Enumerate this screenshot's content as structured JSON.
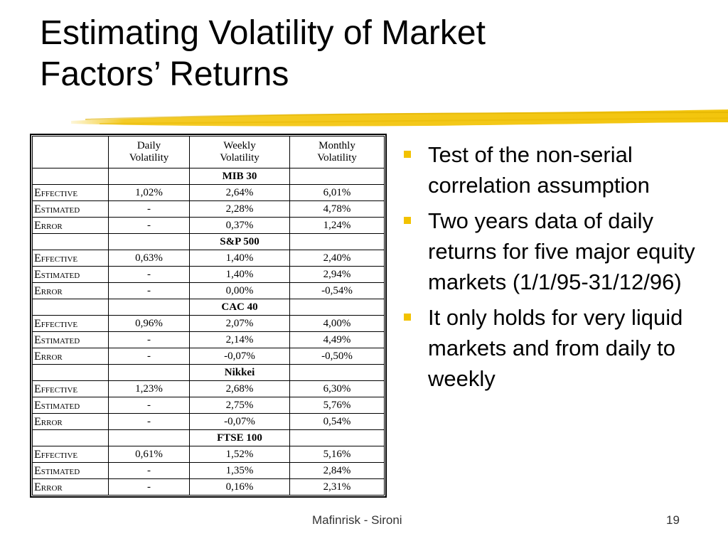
{
  "slide": {
    "title_line1": "Estimating Volatility of Market",
    "title_line2": "Factors’ Returns",
    "accent_color": "#f2c200",
    "footer": "Mafinrisk - Sironi",
    "page_number": "19"
  },
  "table": {
    "headers": [
      "",
      "Daily\nVolatility",
      "Weekly\nVolatility",
      "Monthly\nVolatility"
    ],
    "markets": [
      {
        "name": "MIB 30",
        "rows": [
          {
            "label": "Effective",
            "daily": "1,02%",
            "weekly": "2,64%",
            "monthly": "6,01%"
          },
          {
            "label": "Estimated",
            "daily": "-",
            "weekly": "2,28%",
            "monthly": "4,78%"
          },
          {
            "label": "Error",
            "daily": "-",
            "weekly": "0,37%",
            "monthly": "1,24%"
          }
        ]
      },
      {
        "name": "S&P 500",
        "rows": [
          {
            "label": "Effective",
            "daily": "0,63%",
            "weekly": "1,40%",
            "monthly": "2,40%"
          },
          {
            "label": "Estimated",
            "daily": "-",
            "weekly": "1,40%",
            "monthly": "2,94%"
          },
          {
            "label": "Error",
            "daily": "-",
            "weekly": "0,00%",
            "monthly": "-0,54%"
          }
        ]
      },
      {
        "name": "CAC 40",
        "rows": [
          {
            "label": "Effective",
            "daily": "0,96%",
            "weekly": "2,07%",
            "monthly": "4,00%"
          },
          {
            "label": "Estimated",
            "daily": "-",
            "weekly": "2,14%",
            "monthly": "4,49%"
          },
          {
            "label": "Error",
            "daily": "-",
            "weekly": "-0,07%",
            "monthly": "-0,50%"
          }
        ]
      },
      {
        "name": "Nikkei",
        "rows": [
          {
            "label": "Effective",
            "daily": "1,23%",
            "weekly": "2,68%",
            "monthly": "6,30%"
          },
          {
            "label": "Estimated",
            "daily": "-",
            "weekly": "2,75%",
            "monthly": "5,76%"
          },
          {
            "label": "Error",
            "daily": "-",
            "weekly": "-0,07%",
            "monthly": "0,54%"
          }
        ]
      },
      {
        "name": "FTSE 100",
        "rows": [
          {
            "label": "Effective",
            "daily": "0,61%",
            "weekly": "1,52%",
            "monthly": "5,16%"
          },
          {
            "label": "Estimated",
            "daily": "-",
            "weekly": "1,35%",
            "monthly": "2,84%"
          },
          {
            "label": "Error",
            "daily": "-",
            "weekly": "0,16%",
            "monthly": "2,31%"
          }
        ]
      }
    ]
  },
  "bullets": [
    "Test of the non-serial correlation assumption",
    "Two years data of daily returns for five major equity markets (1/1/95-31/12/96)",
    "It only holds for very liquid markets and from daily to weekly"
  ]
}
